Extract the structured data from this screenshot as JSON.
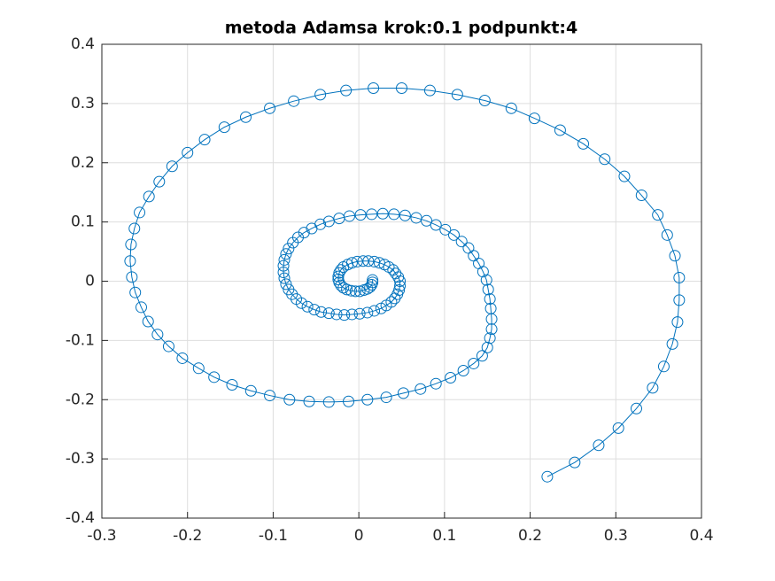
{
  "chart_data": {
    "type": "line",
    "title": "metoda Adamsa krok:0.1 podpunkt:4",
    "series": [
      {
        "color": "#0072bd",
        "marker": "circle",
        "x": [
          0.22,
          0.252,
          0.28,
          0.303,
          0.324,
          0.343,
          0.356,
          0.366,
          0.372,
          0.374,
          0.374,
          0.369,
          0.36,
          0.349,
          0.33,
          0.31,
          0.287,
          0.262,
          0.235,
          0.205,
          0.178,
          0.147,
          0.115,
          0.083,
          0.05,
          0.017,
          -0.015,
          -0.045,
          -0.076,
          -0.104,
          -0.132,
          -0.157,
          -0.18,
          -0.2,
          -0.218,
          -0.233,
          -0.245,
          -0.256,
          -0.262,
          -0.266,
          -0.267,
          -0.265,
          -0.261,
          -0.254,
          -0.246,
          -0.235,
          -0.222,
          -0.206,
          -0.187,
          -0.169,
          -0.148,
          -0.126,
          -0.104,
          -0.081,
          -0.058,
          -0.035,
          -0.012,
          0.01,
          0.032,
          0.052,
          0.072,
          0.09,
          0.107,
          0.122,
          0.134,
          0.144,
          0.15,
          0.153,
          0.155,
          0.155,
          0.154,
          0.153,
          0.151,
          0.149,
          0.145,
          0.14,
          0.134,
          0.128,
          0.12,
          0.111,
          0.101,
          0.09,
          0.079,
          0.067,
          0.054,
          0.041,
          0.028,
          0.015,
          0.002,
          -0.011,
          -0.023,
          -0.035,
          -0.045,
          -0.055,
          -0.064,
          -0.071,
          -0.077,
          -0.082,
          -0.085,
          -0.087,
          -0.088,
          -0.088,
          -0.087,
          -0.085,
          -0.082,
          -0.078,
          -0.073,
          -0.067,
          -0.06,
          -0.052,
          -0.044,
          -0.035,
          -0.026,
          -0.017,
          -0.008,
          0.001,
          0.01,
          0.018,
          0.026,
          0.032,
          0.038,
          0.042,
          0.045,
          0.047,
          0.048,
          0.048,
          0.046,
          0.043,
          0.04,
          0.035,
          0.03,
          0.024,
          0.018,
          0.011,
          0.005,
          -0.002,
          -0.008,
          -0.013,
          -0.018,
          -0.021,
          -0.023,
          -0.024,
          -0.024,
          -0.023,
          -0.021,
          -0.018,
          -0.014,
          -0.009,
          -0.004,
          0.001,
          0.006,
          0.01,
          0.013,
          0.015,
          0.016,
          0.016
        ],
        "values": [
          -0.33,
          -0.306,
          -0.277,
          -0.248,
          -0.215,
          -0.18,
          -0.144,
          -0.106,
          -0.069,
          -0.032,
          0.006,
          0.043,
          0.078,
          0.112,
          0.145,
          0.177,
          0.206,
          0.232,
          0.255,
          0.275,
          0.292,
          0.305,
          0.315,
          0.322,
          0.326,
          0.326,
          0.322,
          0.315,
          0.304,
          0.292,
          0.277,
          0.26,
          0.239,
          0.217,
          0.194,
          0.168,
          0.143,
          0.116,
          0.089,
          0.062,
          0.034,
          0.007,
          -0.019,
          -0.044,
          -0.068,
          -0.09,
          -0.11,
          -0.13,
          -0.147,
          -0.162,
          -0.175,
          -0.185,
          -0.193,
          -0.2,
          -0.203,
          -0.204,
          -0.203,
          -0.2,
          -0.196,
          -0.189,
          -0.182,
          -0.173,
          -0.163,
          -0.151,
          -0.139,
          -0.126,
          -0.112,
          -0.096,
          -0.081,
          -0.064,
          -0.046,
          -0.03,
          -0.014,
          0.002,
          0.016,
          0.03,
          0.043,
          0.056,
          0.067,
          0.078,
          0.087,
          0.095,
          0.102,
          0.107,
          0.111,
          0.113,
          0.114,
          0.113,
          0.112,
          0.11,
          0.106,
          0.101,
          0.096,
          0.089,
          0.082,
          0.074,
          0.065,
          0.055,
          0.046,
          0.036,
          0.026,
          0.015,
          0.005,
          -0.005,
          -0.014,
          -0.022,
          -0.03,
          -0.037,
          -0.043,
          -0.048,
          -0.052,
          -0.054,
          -0.056,
          -0.057,
          -0.056,
          -0.055,
          -0.053,
          -0.05,
          -0.046,
          -0.041,
          -0.035,
          -0.029,
          -0.022,
          -0.015,
          -0.008,
          0.0,
          0.007,
          0.013,
          0.019,
          0.024,
          0.028,
          0.031,
          0.033,
          0.034,
          0.034,
          0.033,
          0.031,
          0.028,
          0.024,
          0.019,
          0.014,
          0.008,
          0.003,
          -0.002,
          -0.007,
          -0.011,
          -0.014,
          -0.016,
          -0.017,
          -0.017,
          -0.015,
          -0.013,
          -0.01,
          -0.006,
          -0.002,
          0.002
        ]
      }
    ],
    "xlim": [
      -0.3,
      0.4
    ],
    "xticks": [
      -0.3,
      -0.2,
      -0.1,
      0,
      0.1,
      0.2,
      0.3,
      0.4
    ],
    "ylim": [
      -0.4,
      0.4
    ],
    "yticks": [
      -0.4,
      -0.3,
      -0.2,
      -0.1,
      0,
      0.1,
      0.2,
      0.3,
      0.4
    ],
    "grid": true
  }
}
